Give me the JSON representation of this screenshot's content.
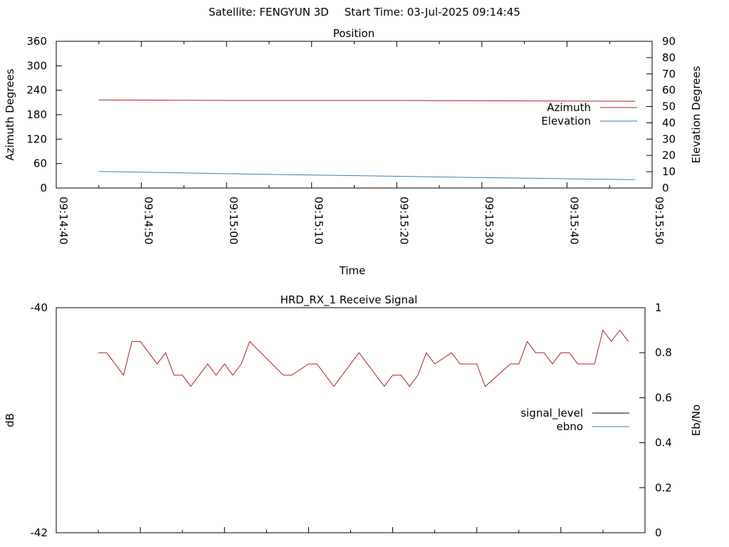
{
  "header": {
    "satellite_label": "Satellite: FENGYUN 3D",
    "start_time_label": "Start Time: 03-Jul-2025 09:14:45"
  },
  "colors": {
    "azimuth": "#b22222",
    "elevation": "#3a7fb5",
    "signal_level": "#000000",
    "ebno": "#3a7fb5",
    "signal_trace": "#b22222"
  },
  "chart_data": [
    {
      "type": "line",
      "title": "Position",
      "xlabel": "Time",
      "ylabel": "Azimuth Degrees",
      "y2label": "Elevation Degrees",
      "x_ticks": [
        "09:14:40",
        "09:14:50",
        "09:15:00",
        "09:15:10",
        "09:15:20",
        "09:15:30",
        "09:15:40",
        "09:15:50"
      ],
      "xlim": [
        "09:14:40",
        "09:15:50"
      ],
      "ylim": [
        0,
        360
      ],
      "y_ticks": [
        0,
        60,
        120,
        180,
        240,
        300,
        360
      ],
      "y2lim": [
        0,
        90
      ],
      "y2_ticks": [
        0,
        10,
        20,
        30,
        40,
        50,
        60,
        70,
        80,
        90
      ],
      "legend_position": "right",
      "series": [
        {
          "name": "Azimuth",
          "axis": "y",
          "x": [
            "09:14:45",
            "09:15:00",
            "09:15:20",
            "09:15:30",
            "09:15:48"
          ],
          "values": [
            216,
            215,
            215,
            214,
            213
          ]
        },
        {
          "name": "Elevation",
          "axis": "y2",
          "x": [
            "09:14:45",
            "09:14:50",
            "09:15:00",
            "09:15:10",
            "09:15:20",
            "09:15:30",
            "09:15:40",
            "09:15:48"
          ],
          "values": [
            10.2,
            9.7,
            8.8,
            8.0,
            7.2,
            6.4,
            5.7,
            5.1
          ]
        }
      ]
    },
    {
      "type": "line",
      "title": "HRD_RX_1 Receive Signal",
      "ylabel": "dB",
      "y2label": "Eb/No",
      "xlim": [
        "09:14:40",
        "09:15:50"
      ],
      "ylim": [
        -42,
        -40
      ],
      "y_ticks": [
        -42,
        -40
      ],
      "y2lim": [
        0,
        1
      ],
      "y2_ticks": [
        0,
        0.2,
        0.4,
        0.6,
        0.8,
        1
      ],
      "legend_position": "right",
      "legend": [
        "signal_level",
        "ebno"
      ],
      "series": [
        {
          "axis": "y2",
          "x": [
            "09:14:45",
            "09:14:46",
            "09:14:48",
            "09:14:49",
            "09:14:50",
            "09:14:52",
            "09:14:53",
            "09:14:54",
            "09:14:55",
            "09:14:56",
            "09:14:58",
            "09:14:59",
            "09:15:00",
            "09:15:01",
            "09:15:02",
            "09:15:03",
            "09:15:07",
            "09:15:08",
            "09:15:10",
            "09:15:11",
            "09:15:13",
            "09:15:16",
            "09:15:19",
            "09:15:20",
            "09:15:21",
            "09:15:22",
            "09:15:23",
            "09:15:24",
            "09:15:25",
            "09:15:27",
            "09:15:28",
            "09:15:29",
            "09:15:30",
            "09:15:31",
            "09:15:34",
            "09:15:35",
            "09:15:36",
            "09:15:37",
            "09:15:38",
            "09:15:39",
            "09:15:40",
            "09:15:41",
            "09:15:42",
            "09:15:44",
            "09:15:45",
            "09:15:46",
            "09:15:47",
            "09:15:48"
          ],
          "values": [
            0.8,
            0.8,
            0.7,
            0.85,
            0.85,
            0.75,
            0.8,
            0.7,
            0.7,
            0.65,
            0.75,
            0.7,
            0.75,
            0.7,
            0.75,
            0.85,
            0.7,
            0.7,
            0.75,
            0.75,
            0.65,
            0.8,
            0.65,
            0.7,
            0.7,
            0.65,
            0.7,
            0.8,
            0.75,
            0.8,
            0.75,
            0.75,
            0.75,
            0.65,
            0.75,
            0.75,
            0.85,
            0.8,
            0.8,
            0.75,
            0.8,
            0.8,
            0.75,
            0.75,
            0.9,
            0.85,
            0.9,
            0.85
          ]
        }
      ]
    }
  ]
}
